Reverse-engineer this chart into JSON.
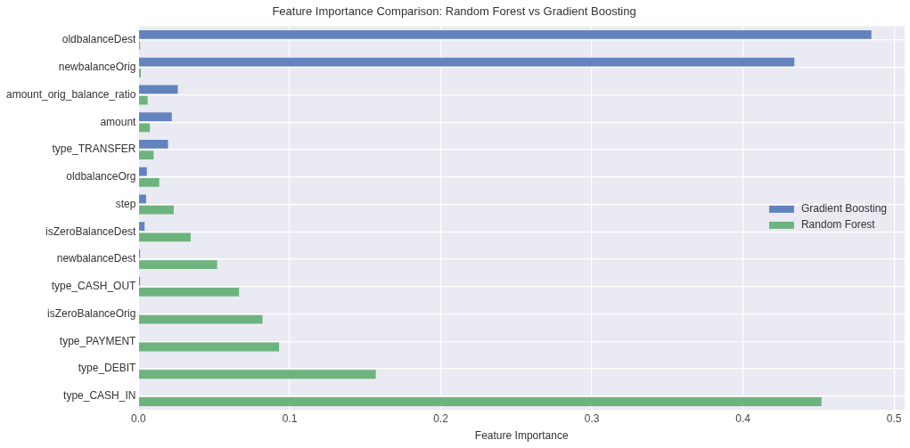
{
  "chart_data": {
    "type": "bar",
    "orientation": "horizontal",
    "title": "Feature Importance Comparison: Random Forest vs Gradient Boosting",
    "xlabel": "Feature Importance",
    "categories": [
      "oldbalanceDest",
      "newbalanceOrig",
      "amount_orig_balance_ratio",
      "amount",
      "type_TRANSFER",
      "oldbalanceOrg",
      "step",
      "isZeroBalanceDest",
      "newbalanceDest",
      "type_CASH_OUT",
      "isZeroBalanceOrig",
      "type_PAYMENT",
      "type_DEBIT",
      "type_CASH_IN"
    ],
    "series": [
      {
        "name": "Gradient Boosting",
        "color": "#6283be",
        "values": [
          0.485,
          0.434,
          0.026,
          0.022,
          0.0195,
          0.0055,
          0.005,
          0.004,
          0.001,
          0.001,
          0,
          0,
          0,
          0
        ]
      },
      {
        "name": "Random Forest",
        "color": "#6db37e",
        "values": [
          0.001,
          0.0015,
          0.006,
          0.0075,
          0.01,
          0.0137,
          0.0233,
          0.0345,
          0.052,
          0.0665,
          0.082,
          0.093,
          0.157,
          0.452
        ]
      }
    ],
    "xlim": [
      0,
      0.507
    ],
    "xticks": [
      {
        "value": 0,
        "label": "0.0"
      },
      0.1,
      0.2,
      0.3,
      0.4,
      0.5
    ],
    "grid": true,
    "legend": "right"
  }
}
